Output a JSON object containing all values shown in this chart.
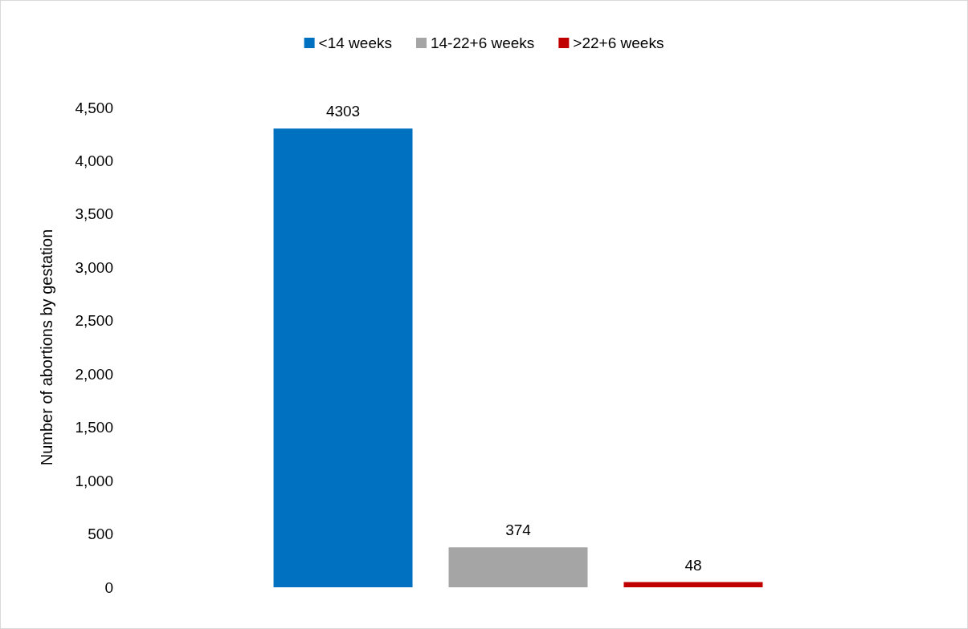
{
  "chart_data": {
    "type": "bar",
    "ylabel": "Number of abortions by gestation",
    "categories": [
      null
    ],
    "series": [
      {
        "name": "<14 weeks",
        "color": "#0070c0",
        "values": [
          4303
        ]
      },
      {
        "name": "14-22+6 weeks",
        "color": "#a5a5a5",
        "values": [
          374
        ]
      },
      {
        "name": ">22+6 weeks",
        "color": "#c00000",
        "values": [
          48
        ]
      }
    ],
    "ylim": [
      0,
      4500
    ],
    "yticks": [
      0,
      500,
      {
        "value": 1000,
        "label": "1,000"
      },
      {
        "value": 1500,
        "label": "1,500"
      },
      {
        "value": 2000,
        "label": "2,000"
      },
      {
        "value": 2500,
        "label": "2,500"
      },
      {
        "value": 3000,
        "label": "3,000"
      },
      {
        "value": 3500,
        "label": "3,500"
      },
      {
        "value": 4000,
        "label": "4,000"
      },
      {
        "value": 4500,
        "label": "4,500"
      }
    ],
    "data_labels": true,
    "grid": false,
    "legend": "top"
  }
}
